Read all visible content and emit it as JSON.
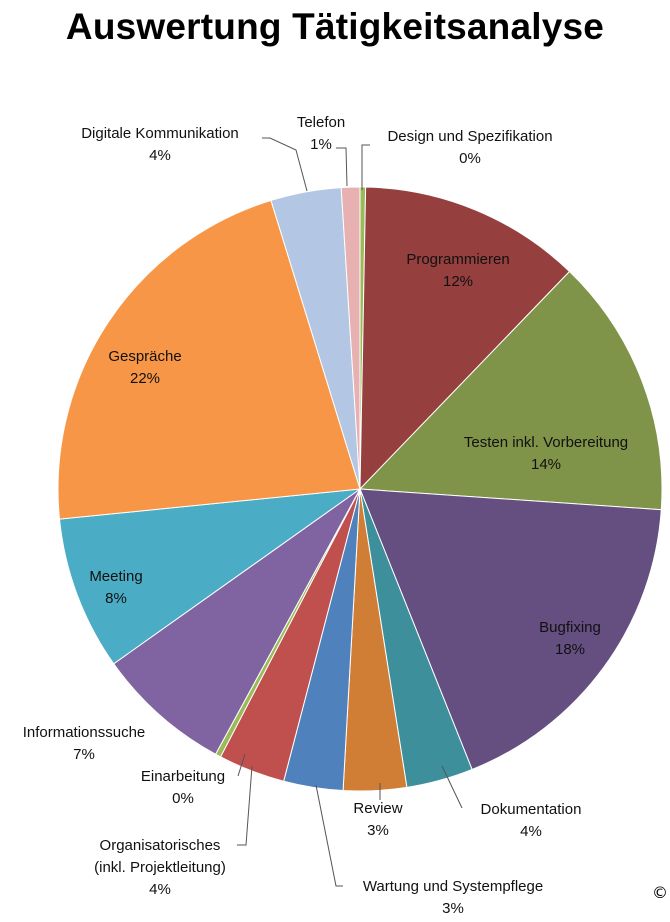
{
  "chart_data": {
    "type": "pie",
    "title": "Auswertung Tätigkeitsanalyse",
    "slices": [
      {
        "label": "Design und Spezifikation",
        "percent_label": "0%",
        "value": 0.3,
        "color": "#9bbb59"
      },
      {
        "label": "Programmieren",
        "percent_label": "12%",
        "value": 12,
        "color": "#953f3e"
      },
      {
        "label": "Testen inkl. Vorbereitung",
        "percent_label": "14%",
        "value": 14,
        "color": "#7f9449"
      },
      {
        "label": "Bugfixing",
        "percent_label": "18%",
        "value": 18,
        "color": "#654e80"
      },
      {
        "label": "Dokumentation",
        "percent_label": "4%",
        "value": 3.6,
        "color": "#3e8f9c"
      },
      {
        "label": "Review",
        "percent_label": "3%",
        "value": 3.4,
        "color": "#d07d36"
      },
      {
        "label": "Wartung und Systempflege",
        "percent_label": "3%",
        "value": 3.2,
        "color": "#4f81bd"
      },
      {
        "label": "Organisatorisches (inkl. Projektleitung)",
        "percent_label": "4%",
        "value": 3.6,
        "color": "#c0504d"
      },
      {
        "label": "Einarbeitung",
        "percent_label": "0%",
        "value": 0.3,
        "color": "#9bbb59"
      },
      {
        "label": "Informationssuche",
        "percent_label": "7%",
        "value": 7.3,
        "color": "#8064a2"
      },
      {
        "label": "Meeting",
        "percent_label": "8%",
        "value": 8.3,
        "color": "#4bacc6"
      },
      {
        "label": "Gespräche",
        "percent_label": "22%",
        "value": 22,
        "color": "#f79646"
      },
      {
        "label": "Digitale Kommunikation",
        "percent_label": "4%",
        "value": 3.8,
        "color": "#b3c6e3"
      },
      {
        "label": "Telefon",
        "percent_label": "1%",
        "value": 1.0,
        "color": "#e6b1b0"
      }
    ]
  },
  "footer": {
    "copyright_symbol": "©"
  }
}
